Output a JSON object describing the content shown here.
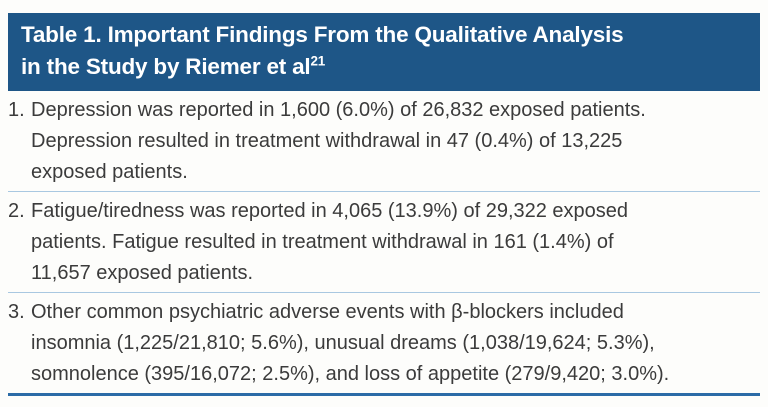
{
  "colors": {
    "banner": "#1e5687",
    "title_text": "#ffffff",
    "body_text": "#3b3b3b",
    "divider": "#a9c8e1",
    "bottom_rule": "#2b6ba7",
    "page_bg": "#fdfdfb"
  },
  "table": {
    "title": {
      "line1": "Table 1. Important Findings From the Qualitative Analysis",
      "line2": "in the Study by Riemer et al",
      "line2_superscript": "21"
    },
    "items": [
      {
        "number": "1.",
        "lines": [
          "Depression was reported in 1,600 (6.0%) of 26,832 exposed patients.",
          "Depression resulted in treatment withdrawal in 47 (0.4%) of 13,225",
          "exposed patients."
        ]
      },
      {
        "number": "2.",
        "lines": [
          "Fatigue/tiredness was reported in 4,065 (13.9%) of 29,322 exposed",
          "patients. Fatigue resulted in treatment withdrawal in 161 (1.4%) of",
          "11,657 exposed patients."
        ]
      },
      {
        "number": "3.",
        "lines": [
          "Other common psychiatric adverse events with β-blockers included",
          "insomnia (1,225/21,810; 5.6%), unusual dreams (1,038/19,624; 5.3%),",
          "somnolence (395/16,072; 2.5%), and loss of appetite (279/9,420; 3.0%)."
        ]
      }
    ]
  }
}
